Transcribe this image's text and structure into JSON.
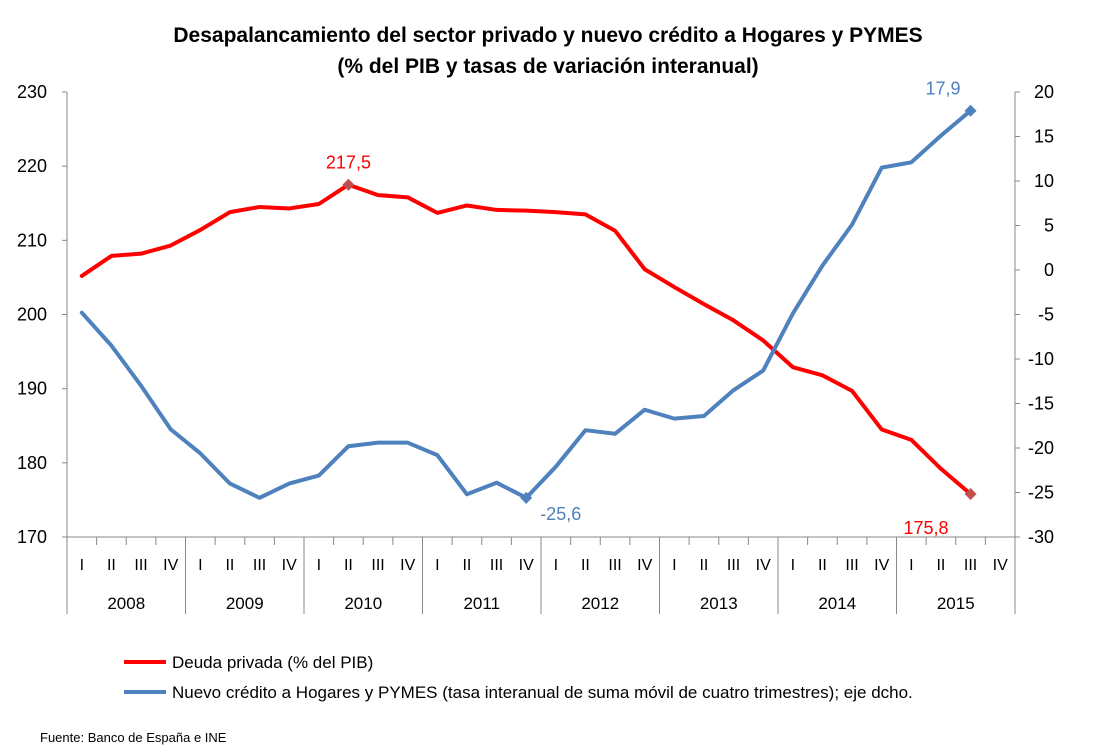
{
  "chart_data": {
    "type": "line",
    "title": "Desapalancamiento del sector privado y nuevo crédito a Hogares y PYMES",
    "subtitle": "(% del PIB y tasas de variación interanual)",
    "quarter_labels": [
      "I",
      "II",
      "III",
      "IV",
      "I",
      "II",
      "III",
      "IV",
      "I",
      "II",
      "III",
      "IV",
      "I",
      "II",
      "III",
      "IV",
      "I",
      "II",
      "III",
      "IV",
      "I",
      "II",
      "III",
      "IV",
      "I",
      "II",
      "III",
      "IV",
      "I",
      "II",
      "III",
      "IV"
    ],
    "years": [
      "2008",
      "2009",
      "2010",
      "2011",
      "2012",
      "2013",
      "2014",
      "2015"
    ],
    "left_axis": {
      "ylim": [
        170,
        230
      ],
      "ticks": [
        "170",
        "180",
        "190",
        "200",
        "210",
        "220",
        "230"
      ]
    },
    "right_axis": {
      "ylim": [
        -30,
        20
      ],
      "ticks": [
        "-30",
        "-25",
        "-20",
        "-15",
        "-10",
        "-5",
        "0",
        "5",
        "10",
        "15",
        "20"
      ]
    },
    "series": [
      {
        "name": "Deuda privada (% del PIB)",
        "axis": "left",
        "color": "#ff0000",
        "values": [
          205.2,
          207.9,
          208.2,
          209.3,
          211.4,
          213.8,
          214.5,
          214.3,
          214.9,
          217.5,
          216.1,
          215.8,
          213.7,
          214.7,
          214.1,
          214.0,
          213.8,
          213.5,
          211.3,
          206.1,
          203.7,
          201.4,
          199.2,
          196.5,
          192.9,
          191.8,
          189.7,
          184.5,
          183.1,
          179.2,
          175.8,
          null
        ]
      },
      {
        "name": "Nuevo crédito a Hogares y PYMES (tasa interanual de suma móvil de cuatro trimestres); eje dcho.",
        "axis": "right",
        "color": "#4f81bd",
        "values": [
          -4.8,
          -8.5,
          -13.0,
          -17.9,
          -20.6,
          -24.0,
          -25.6,
          -24.0,
          -23.1,
          -19.8,
          -19.4,
          -19.4,
          -20.8,
          -25.2,
          -23.9,
          -25.6,
          -22.1,
          -18.0,
          -18.4,
          -15.7,
          -16.7,
          -16.4,
          -13.5,
          -11.3,
          -4.9,
          0.5,
          5.1,
          11.5,
          12.1,
          15.1,
          17.9,
          null
        ]
      }
    ],
    "annotations": [
      {
        "series": 0,
        "index": 9,
        "label": "217,5"
      },
      {
        "series": 0,
        "index": 30,
        "label": "175,8"
      },
      {
        "series": 1,
        "index": 15,
        "label": "-25,6"
      },
      {
        "series": 1,
        "index": 30,
        "label": "17,9"
      }
    ],
    "legend": [
      "Deuda privada (% del PIB)",
      "Nuevo crédito a Hogares y PYMES (tasa interanual de suma móvil de cuatro trimestres); eje dcho."
    ]
  },
  "source": "Fuente:  Banco de España e INE"
}
